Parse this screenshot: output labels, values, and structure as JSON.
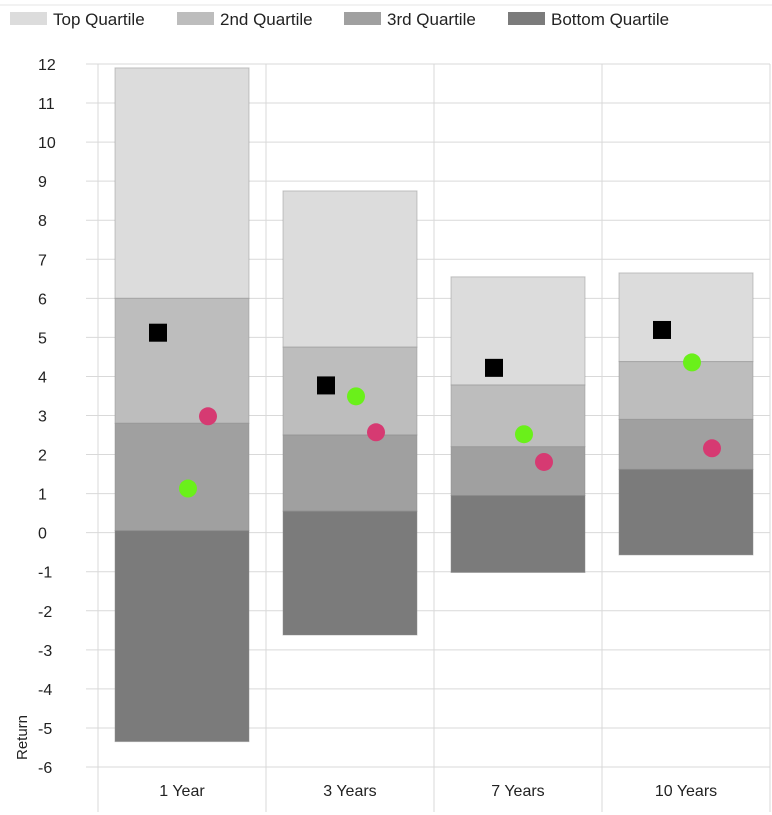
{
  "chart_data": {
    "type": "bar",
    "categories": [
      "1 Year",
      "3 Years",
      "7 Years",
      "10 Years"
    ],
    "ylabel": "Return",
    "ylim": [
      -6,
      12
    ],
    "yticks": [
      12,
      11,
      10,
      9,
      8,
      7,
      6,
      5,
      4,
      3,
      2,
      1,
      0,
      -1,
      -2,
      -3,
      -4,
      -5,
      -6
    ],
    "grid": true,
    "legend_position": "top",
    "quartiles": [
      {
        "name": "Top Quartile",
        "color": "#dcdcdc",
        "bottom": [
          6.0,
          4.75,
          3.78,
          4.38
        ],
        "top": [
          11.9,
          8.75,
          6.55,
          6.65
        ]
      },
      {
        "name": "2nd Quartile",
        "color": "#bdbdbd",
        "bottom": [
          2.8,
          2.5,
          2.2,
          2.9
        ],
        "top": [
          6.0,
          4.75,
          3.78,
          4.38
        ]
      },
      {
        "name": "3rd Quartile",
        "color": "#a0a0a0",
        "bottom": [
          0.05,
          0.55,
          0.95,
          1.62
        ],
        "top": [
          2.8,
          2.5,
          2.2,
          2.9
        ]
      },
      {
        "name": "Bottom Quartile",
        "color": "#7b7b7b",
        "bottom": [
          -5.35,
          -2.62,
          -1.02,
          -0.57
        ],
        "top": [
          0.05,
          0.55,
          0.95,
          1.62
        ]
      }
    ],
    "markers": [
      {
        "shape": "square",
        "color": "#000000",
        "values": [
          5.12,
          3.77,
          4.22,
          5.19
        ]
      },
      {
        "shape": "circle",
        "color": "#6af01a",
        "values": [
          1.13,
          3.49,
          2.52,
          4.36
        ]
      },
      {
        "shape": "circle",
        "color": "#d63a72",
        "values": [
          2.98,
          2.57,
          1.81,
          2.16
        ]
      }
    ]
  }
}
